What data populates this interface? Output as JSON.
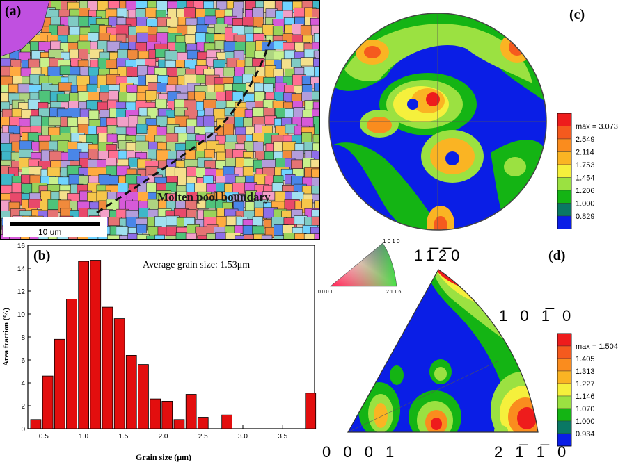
{
  "panel_a": {
    "label": "(a)",
    "boundary_label": "Molten pool boundary",
    "scalebar_label": "10 um"
  },
  "panel_b": {
    "label": "(b)",
    "annotation": "Average grain size: 1.53μm"
  },
  "panel_c": {
    "label": "(c)",
    "axis_label": "11̅2̅0",
    "legend": [
      "max = 3.073",
      "2.549",
      "2.114",
      "1.753",
      "1.454",
      "1.206",
      "1.000",
      "0.829"
    ],
    "legend_colors": [
      "#ee1c1c",
      "#f55a1e",
      "#fa8c1e",
      "#fab423",
      "#f5f03c",
      "#9be141",
      "#14b414",
      "#0a7864",
      "#0a1ee6"
    ]
  },
  "panel_d": {
    "label": "(d)",
    "key_triangle_labels": [
      "0001",
      "2̅110",
      "10̅1̅0"
    ],
    "key_labels": {
      "top": "1 0 1 0",
      "left": "0 0 0 1",
      "right": "2 1 1 6"
    },
    "corner_labels": {
      "top_right": "1 0 1̅ 0",
      "bottom_left": "0 0 0 1",
      "bottom_right": "2 1̅ 1̅ 0"
    },
    "legend": [
      "max = 1.504",
      "1.405",
      "1.313",
      "1.227",
      "1.146",
      "1.070",
      "1.000",
      "0.934"
    ],
    "legend_colors": [
      "#ee1c1c",
      "#f55a1e",
      "#fa8c1e",
      "#fab423",
      "#f5f03c",
      "#9be141",
      "#14b414",
      "#0a7864",
      "#0a1ee6"
    ]
  },
  "chart_data": {
    "type": "bar",
    "x": [
      0.4,
      0.55,
      0.7,
      0.85,
      1.0,
      1.15,
      1.3,
      1.45,
      1.6,
      1.75,
      1.9,
      2.05,
      2.2,
      2.35,
      2.5,
      2.65,
      2.8,
      2.95,
      3.25,
      3.85
    ],
    "values": [
      0.8,
      4.6,
      7.8,
      11.3,
      14.6,
      14.7,
      10.6,
      9.6,
      6.4,
      5.6,
      2.6,
      2.4,
      0.8,
      3.0,
      1.0,
      0,
      1.2,
      0,
      0,
      3.1
    ],
    "bin_width": 0.13,
    "xlabel": "Grain size (μm)",
    "ylabel": "Area fraction (%)",
    "xlim": [
      0.3,
      3.9
    ],
    "ylim": [
      0,
      16
    ],
    "xticks": [
      0.5,
      1.0,
      1.5,
      2.0,
      2.5,
      3.0,
      3.5
    ],
    "xtick_labels": [
      "0.5",
      "1.0",
      "1.5",
      "2.0",
      "2.5",
      "3.0",
      "3.5"
    ],
    "yticks": [
      0,
      2,
      4,
      6,
      8,
      10,
      12,
      14,
      16
    ],
    "bar_color": "#e30e0e"
  }
}
